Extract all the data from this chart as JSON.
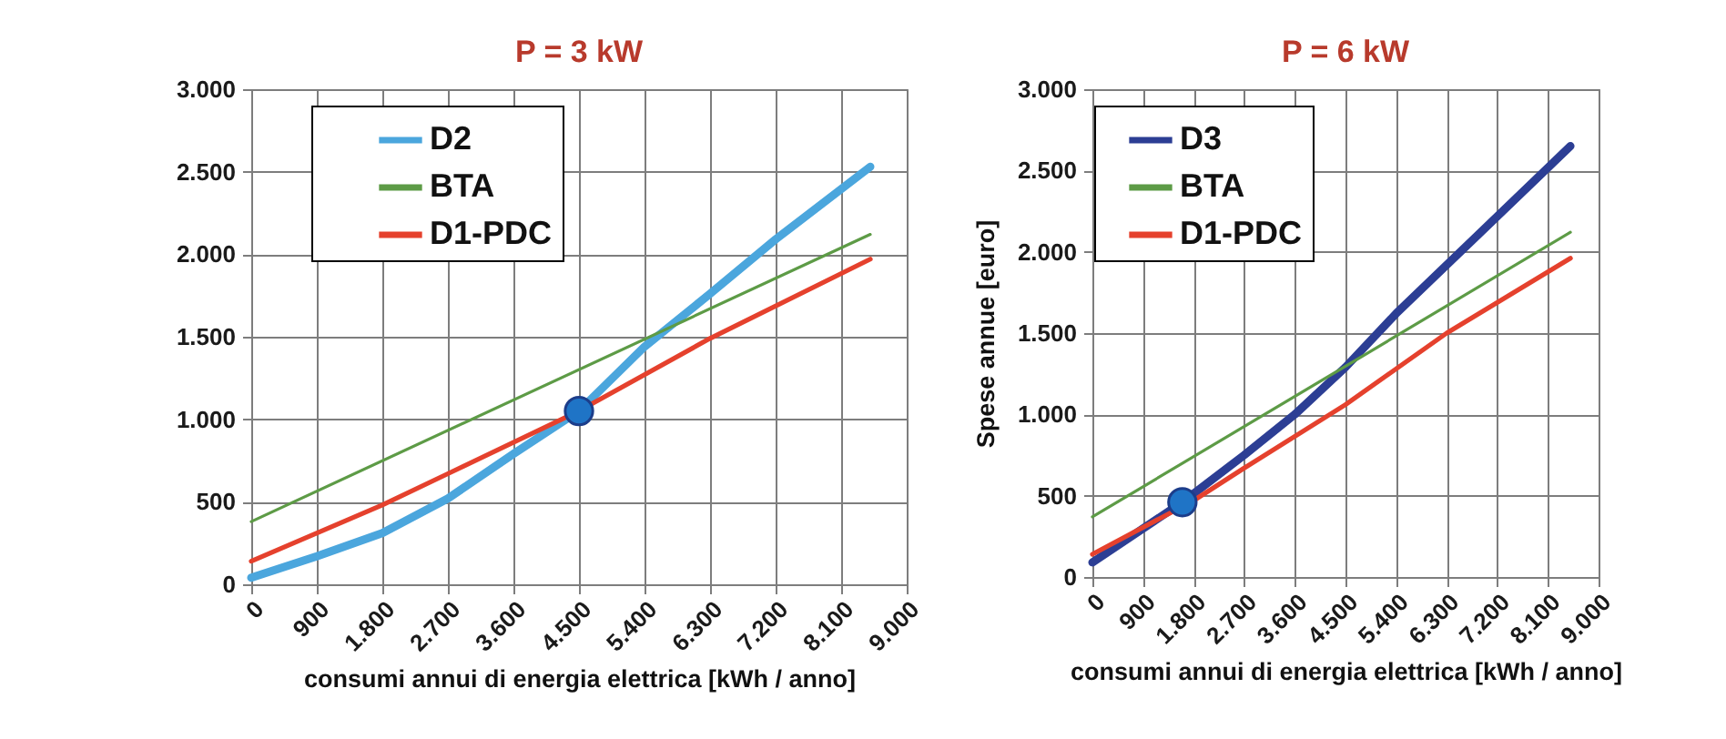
{
  "chart_data": [
    {
      "type": "line",
      "title": "P = 3 kW",
      "xlabel": "consumi annui di energia elettrica [kWh / anno]",
      "series": [
        {
          "name": "D2",
          "color": "#4ba6dd",
          "x": [
            0,
            900,
            1800,
            2700,
            3600,
            4500,
            5400,
            6300,
            7200,
            8500
          ],
          "values": [
            40,
            170,
            310,
            520,
            790,
            1050,
            1440,
            1760,
            2090,
            2530
          ]
        },
        {
          "name": "BTA",
          "color": "#5d9b46",
          "x": [
            0,
            8500
          ],
          "values": [
            380,
            2120
          ]
        },
        {
          "name": "D1-PDC",
          "color": "#e5412d",
          "x": [
            0,
            1800,
            2700,
            4500,
            6300,
            8500
          ],
          "values": [
            140,
            480,
            670,
            1050,
            1490,
            1970
          ]
        },
        {
          "type": "scatter",
          "color": "#1f74c6",
          "x": [
            4500
          ],
          "values": [
            1050
          ]
        }
      ],
      "xlim": [
        0,
        9000
      ],
      "xticks": [
        0,
        900,
        {
          "value": 1800,
          "label": "1.800"
        },
        {
          "value": 2700,
          "label": "2.700"
        },
        {
          "value": 3600,
          "label": "3.600"
        },
        {
          "value": 4500,
          "label": "4.500"
        },
        {
          "value": 5400,
          "label": "5.400"
        },
        {
          "value": 6300,
          "label": "6.300"
        },
        {
          "value": 7200,
          "label": "7.200"
        },
        {
          "value": 8100,
          "label": "8.100"
        },
        {
          "value": 9000,
          "label": "9.000"
        }
      ],
      "ylim": [
        0,
        3000
      ],
      "yticks": [
        0,
        500,
        {
          "value": 1000,
          "label": "1.000"
        },
        {
          "value": 1500,
          "label": "1.500"
        },
        {
          "value": 2000,
          "label": "2.000"
        },
        {
          "value": 2500,
          "label": "2.500"
        },
        {
          "value": 3000,
          "label": "3.000"
        }
      ],
      "grid": true,
      "legend": "top left"
    },
    {
      "type": "line",
      "title": "P = 6 kW",
      "xlabel": "consumi annui di energia elettrica [kWh / anno]",
      "ylabel": "Spese annue [euro]",
      "series": [
        {
          "name": "D3",
          "color": "#2c3e94",
          "x": [
            0,
            1600,
            2700,
            3600,
            4500,
            5400,
            8500
          ],
          "values": [
            90,
            460,
            750,
            1000,
            1290,
            1620,
            2650
          ]
        },
        {
          "name": "BTA",
          "color": "#5d9b46",
          "x": [
            0,
            8500
          ],
          "values": [
            370,
            2120
          ]
        },
        {
          "name": "D1-PDC",
          "color": "#e5412d",
          "x": [
            0,
            1800,
            2700,
            4500,
            6300,
            8500
          ],
          "values": [
            140,
            470,
            670,
            1060,
            1500,
            1960
          ]
        },
        {
          "type": "scatter",
          "color": "#1f74c6",
          "x": [
            1600
          ],
          "values": [
            460
          ]
        }
      ],
      "xlim": [
        0,
        9000
      ],
      "xticks": [
        0,
        900,
        {
          "value": 1800,
          "label": "1.800"
        },
        {
          "value": 2700,
          "label": "2.700"
        },
        {
          "value": 3600,
          "label": "3.600"
        },
        {
          "value": 4500,
          "label": "4.500"
        },
        {
          "value": 5400,
          "label": "5.400"
        },
        {
          "value": 6300,
          "label": "6.300"
        },
        {
          "value": 7200,
          "label": "7.200"
        },
        {
          "value": 8100,
          "label": "8.100"
        },
        {
          "value": 9000,
          "label": "9.000"
        }
      ],
      "ylim": [
        0,
        3000
      ],
      "yticks": [
        0,
        500,
        {
          "value": 1000,
          "label": "1.000"
        },
        {
          "value": 1500,
          "label": "1.500"
        },
        {
          "value": 2000,
          "label": "2.000"
        },
        {
          "value": 2500,
          "label": "2.500"
        },
        {
          "value": 3000,
          "label": "3.000"
        }
      ],
      "grid": true,
      "legend": "top left"
    }
  ]
}
